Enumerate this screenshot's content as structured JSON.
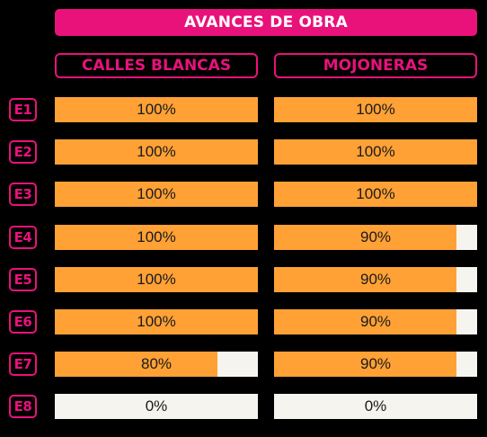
{
  "chart_data": {
    "type": "bar",
    "title": "AVANCES DE OBRA",
    "categories": [
      "E1",
      "E2",
      "E3",
      "E4",
      "E5",
      "E6",
      "E7",
      "E8"
    ],
    "unit": "%",
    "ylim": [
      0,
      100
    ],
    "series": [
      {
        "name": "CALLES BLANCAS",
        "values": [
          100,
          100,
          100,
          100,
          100,
          100,
          80,
          0
        ]
      },
      {
        "name": "MOJONERAS",
        "values": [
          100,
          100,
          100,
          90,
          90,
          90,
          90,
          0
        ]
      }
    ],
    "colors": {
      "accent": "#e8127a",
      "fill": "#ffa135",
      "track": "#f6f4ef",
      "background": "#000000"
    }
  }
}
